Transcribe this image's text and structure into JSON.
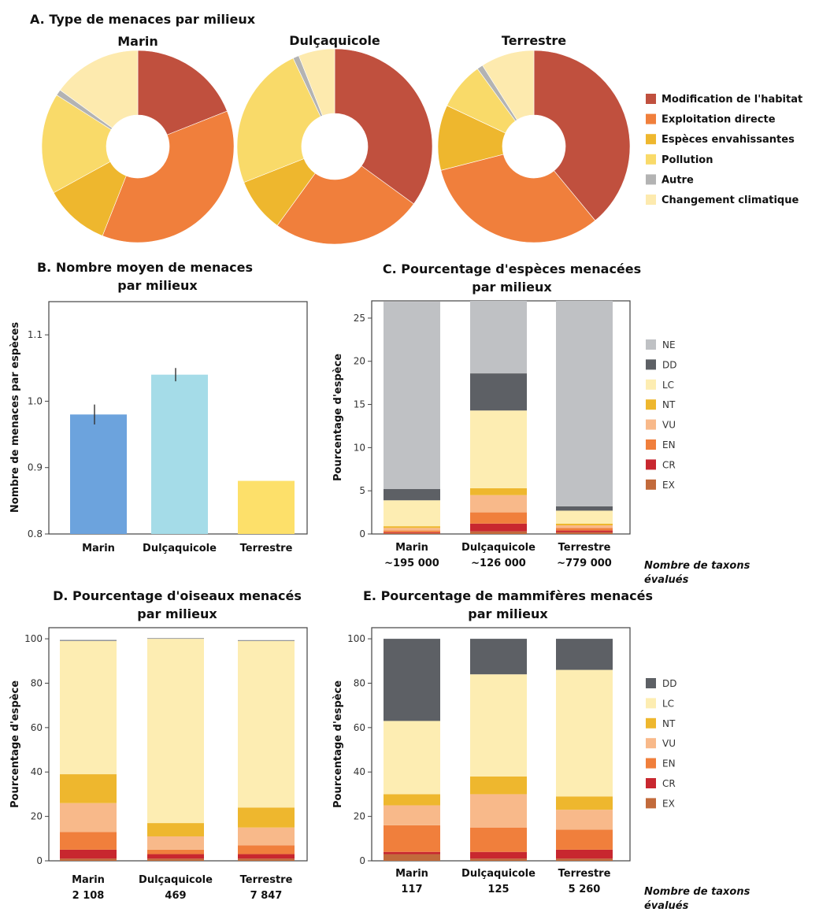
{
  "chart_data": [
    {
      "id": "A",
      "type": "pie",
      "title": "A. Type de menaces par  milieux",
      "legend": {
        "placement": "right",
        "entries": [
          {
            "label": "Modification de l'habitat",
            "color": "#c0503e"
          },
          {
            "label": "Exploitation directe",
            "color": "#f07f3c"
          },
          {
            "label": "Espèces envahissantes",
            "color": "#eeb72e"
          },
          {
            "label": "Pollution",
            "color": "#f9da69"
          },
          {
            "label": "Autre",
            "color": "#b3b3b3"
          },
          {
            "label": "Changement climatique",
            "color": "#fdeaae"
          }
        ]
      },
      "pies": [
        {
          "name": "Marin",
          "values": [
            19,
            37,
            11,
            17,
            1,
            15
          ]
        },
        {
          "name": "Dulçaquicole",
          "values": [
            35,
            25,
            9,
            24,
            1,
            6
          ]
        },
        {
          "name": "Terrestre",
          "values": [
            39,
            32,
            11,
            8,
            1,
            9
          ]
        }
      ]
    },
    {
      "id": "B",
      "type": "bar",
      "title": [
        "B. Nombre moyen de menaces",
        "par milieux"
      ],
      "ylabel": "Nombre de menaces par espèces",
      "ylim": [
        0.8,
        1.15
      ],
      "yticks": [
        "0.8",
        "0.9",
        "1.0",
        "1.1"
      ],
      "categories": [
        "Marin",
        "Dulçaquicole",
        "Terrestre"
      ],
      "values": [
        0.98,
        1.04,
        0.88
      ],
      "errors": [
        0.015,
        0.01,
        0
      ],
      "colors": [
        "#6ca3dd",
        "#a5dce8",
        "#fde06a"
      ]
    },
    {
      "id": "C",
      "type": "bar",
      "title": [
        "C. Pourcentage d'espèces menacées",
        "par milieux"
      ],
      "ylabel": "Pourcentage d'espèce",
      "ylim": [
        0,
        27
      ],
      "yticks": [
        "0",
        "5",
        "10",
        "15",
        "20",
        "25"
      ],
      "categories": [
        "Marin",
        "Dulçaquicole",
        "Terrestre"
      ],
      "counts": [
        "~195 000",
        "~126 000",
        "~779 000"
      ],
      "count_label": [
        "Nombre de taxons",
        "évalués"
      ],
      "segments": [
        {
          "name": "EX",
          "color": "#c26a3b",
          "values": [
            0.1,
            0.3,
            0.2
          ]
        },
        {
          "name": "CR",
          "color": "#c8272f",
          "values": [
            0.1,
            0.9,
            0.2
          ]
        },
        {
          "name": "EN",
          "color": "#f07f3c",
          "values": [
            0.2,
            1.3,
            0.3
          ]
        },
        {
          "name": "VU",
          "color": "#f8b98a",
          "values": [
            0.3,
            2.0,
            0.3
          ]
        },
        {
          "name": "NT",
          "color": "#eeb72e",
          "values": [
            0.2,
            0.8,
            0.2
          ]
        },
        {
          "name": "LC",
          "color": "#fdedb2",
          "values": [
            3.0,
            9.0,
            1.5
          ]
        },
        {
          "name": "DD",
          "color": "#5d6065",
          "values": [
            1.3,
            4.3,
            0.5
          ]
        },
        {
          "name": "NE",
          "color": "#bfc1c4",
          "values": [
            21.7,
            8.4,
            23.8
          ]
        }
      ]
    },
    {
      "id": "D",
      "type": "bar",
      "title": [
        "D. Pourcentage d'oiseaux menacés",
        "par milieux"
      ],
      "ylabel": "Pourcentage d'espèce",
      "ylim": [
        0,
        105
      ],
      "yticks": [
        "0",
        "20",
        "40",
        "60",
        "80",
        "100"
      ],
      "categories": [
        "Marin",
        "Dulçaquicole",
        "Terrestre"
      ],
      "counts": [
        "2 108",
        "469",
        "7 847"
      ],
      "segments": [
        {
          "name": "EX",
          "color": "#c26a3b",
          "values": [
            1,
            1,
            1
          ]
        },
        {
          "name": "CR",
          "color": "#c8272f",
          "values": [
            4,
            2,
            2
          ]
        },
        {
          "name": "EN",
          "color": "#f07f3c",
          "values": [
            8,
            2,
            4
          ]
        },
        {
          "name": "VU",
          "color": "#f8b98a",
          "values": [
            13,
            6,
            8
          ]
        },
        {
          "name": "NT",
          "color": "#eeb72e",
          "values": [
            13,
            6,
            9
          ]
        },
        {
          "name": "LC",
          "color": "#fdedb2",
          "values": [
            60,
            83,
            75
          ]
        },
        {
          "name": "DD",
          "color": "#8a8c90",
          "values": [
            0.5,
            0.3,
            0.4
          ]
        }
      ]
    },
    {
      "id": "E",
      "type": "bar",
      "title": [
        "E. Pourcentage de mammifères menacés",
        "par milieux"
      ],
      "ylabel": "Pourcentage d'espèce",
      "ylim": [
        0,
        105
      ],
      "yticks": [
        "0",
        "20",
        "40",
        "60",
        "80",
        "100"
      ],
      "categories": [
        "Marin",
        "Dulçaquicole",
        "Terrestre"
      ],
      "counts": [
        "117",
        "125",
        "5 260"
      ],
      "count_label": [
        "Nombre de taxons",
        "évalués"
      ],
      "segments": [
        {
          "name": "EX",
          "color": "#c26a3b",
          "values": [
            3,
            1,
            1
          ]
        },
        {
          "name": "CR",
          "color": "#c8272f",
          "values": [
            1,
            3,
            4
          ]
        },
        {
          "name": "EN",
          "color": "#f07f3c",
          "values": [
            12,
            11,
            9
          ]
        },
        {
          "name": "VU",
          "color": "#f8b98a",
          "values": [
            9,
            15,
            9
          ]
        },
        {
          "name": "NT",
          "color": "#eeb72e",
          "values": [
            5,
            8,
            6
          ]
        },
        {
          "name": "LC",
          "color": "#fdedb2",
          "values": [
            33,
            46,
            57
          ]
        },
        {
          "name": "DD",
          "color": "#5d6065",
          "values": [
            37,
            16,
            14
          ]
        }
      ]
    }
  ]
}
